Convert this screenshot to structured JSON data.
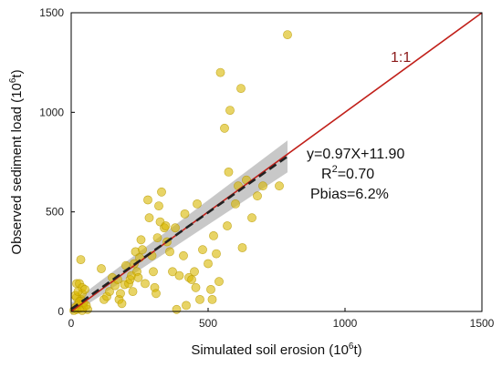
{
  "chart_data": {
    "type": "scatter",
    "xlabel_base": "Simulated soil erosion (10",
    "xlabel_sup": "6",
    "xlabel_tail": "t)",
    "ylabel_base": "Observed sediment load (10",
    "ylabel_sup": "6",
    "ylabel_tail": "t)",
    "xlim": [
      0,
      1500
    ],
    "ylim": [
      0,
      1500
    ],
    "xticks": [
      0,
      500,
      1000,
      1500
    ],
    "yticks": [
      0,
      500,
      1000,
      1500
    ],
    "grid": false,
    "points": [
      [
        10,
        5
      ],
      [
        15,
        20
      ],
      [
        20,
        10
      ],
      [
        25,
        35
      ],
      [
        30,
        15
      ],
      [
        35,
        60
      ],
      [
        40,
        90
      ],
      [
        45,
        40
      ],
      [
        20,
        140
      ],
      [
        30,
        140
      ],
      [
        40,
        120
      ],
      [
        35,
        260
      ],
      [
        50,
        110
      ],
      [
        20,
        70
      ],
      [
        15,
        80
      ],
      [
        45,
        20
      ],
      [
        60,
        10
      ],
      [
        30,
        50
      ],
      [
        25,
        100
      ],
      [
        40,
        5
      ],
      [
        55,
        30
      ],
      [
        110,
        215
      ],
      [
        120,
        60
      ],
      [
        130,
        75
      ],
      [
        140,
        100
      ],
      [
        150,
        170
      ],
      [
        160,
        130
      ],
      [
        170,
        160
      ],
      [
        175,
        60
      ],
      [
        180,
        90
      ],
      [
        185,
        40
      ],
      [
        195,
        135
      ],
      [
        200,
        230
      ],
      [
        210,
        140
      ],
      [
        215,
        160
      ],
      [
        220,
        180
      ],
      [
        225,
        100
      ],
      [
        230,
        240
      ],
      [
        235,
        300
      ],
      [
        240,
        200
      ],
      [
        245,
        170
      ],
      [
        250,
        270
      ],
      [
        255,
        360
      ],
      [
        260,
        310
      ],
      [
        270,
        140
      ],
      [
        280,
        560
      ],
      [
        285,
        470
      ],
      [
        295,
        280
      ],
      [
        300,
        200
      ],
      [
        305,
        120
      ],
      [
        310,
        90
      ],
      [
        315,
        370
      ],
      [
        320,
        530
      ],
      [
        325,
        450
      ],
      [
        330,
        600
      ],
      [
        340,
        420
      ],
      [
        345,
        430
      ],
      [
        350,
        350
      ],
      [
        360,
        300
      ],
      [
        370,
        200
      ],
      [
        380,
        420
      ],
      [
        385,
        10
      ],
      [
        395,
        180
      ],
      [
        410,
        280
      ],
      [
        415,
        490
      ],
      [
        420,
        30
      ],
      [
        430,
        170
      ],
      [
        440,
        160
      ],
      [
        450,
        200
      ],
      [
        455,
        120
      ],
      [
        460,
        540
      ],
      [
        470,
        60
      ],
      [
        480,
        310
      ],
      [
        500,
        240
      ],
      [
        510,
        110
      ],
      [
        515,
        60
      ],
      [
        520,
        380
      ],
      [
        530,
        290
      ],
      [
        540,
        150
      ],
      [
        545,
        1200
      ],
      [
        560,
        920
      ],
      [
        570,
        430
      ],
      [
        575,
        700
      ],
      [
        580,
        1010
      ],
      [
        600,
        540
      ],
      [
        610,
        630
      ],
      [
        620,
        1120
      ],
      [
        625,
        320
      ],
      [
        640,
        660
      ],
      [
        660,
        470
      ],
      [
        680,
        580
      ],
      [
        700,
        630
      ],
      [
        760,
        630
      ],
      [
        790,
        1390
      ]
    ],
    "fit": {
      "slope": 0.97,
      "intercept": 11.9,
      "x_range": [
        0,
        790
      ]
    },
    "ci_halfwidth": [
      30,
      80
    ],
    "reference_line": {
      "label": "1:1"
    },
    "equation": "y=0.97X+11.90",
    "r2_prefix": "R",
    "r2_sup": "2",
    "r2_value": "=0.70",
    "pbias": "Pbias=6.2%",
    "colors": {
      "points": "#d9b800",
      "point_edge": "#b89a00",
      "fit_line": "#222222",
      "ci_band": "#b5b5b5",
      "reference_line": "#c1201a",
      "reference_label": "#8b1a1a"
    }
  }
}
